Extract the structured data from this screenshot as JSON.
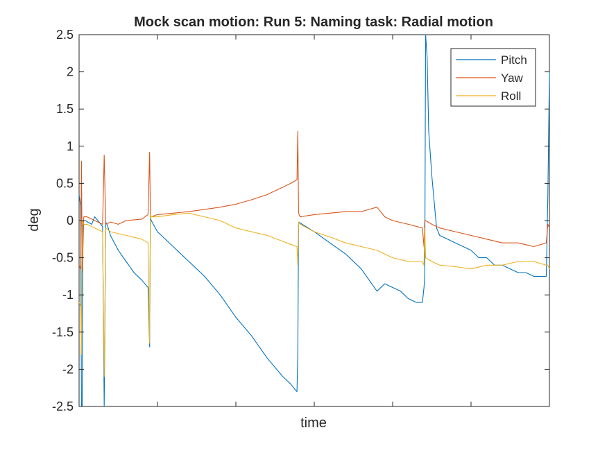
{
  "chart_data": {
    "type": "line",
    "title": "Mock scan motion: Run 5: Naming task: Radial motion",
    "xlabel": "time",
    "ylabel": "deg",
    "xlim": [
      0,
      300
    ],
    "ylim": [
      -2.5,
      2.5
    ],
    "yticks": [
      -2.5,
      -2,
      -1.5,
      -1,
      -0.5,
      0,
      0.5,
      1,
      1.5,
      2,
      2.5
    ],
    "ytick_labels": [
      "-2.5",
      "-2",
      "-1.5",
      "-1",
      "-0.5",
      "0",
      "0.5",
      "1",
      "1.5",
      "2",
      "2.5"
    ],
    "xticks": [
      0,
      50,
      100,
      150,
      200,
      250,
      300
    ],
    "xtick_labels": [
      "",
      "",
      "",
      "",
      "",
      "",
      ""
    ],
    "grid": false,
    "legend": "top-right",
    "series": [
      {
        "name": "Pitch",
        "color": "#0072BD",
        "x": [
          0,
          1,
          1.5,
          2,
          2.5,
          4,
          8,
          10,
          12,
          15,
          16,
          17,
          18,
          20,
          25,
          30,
          35,
          40,
          44,
          45,
          45.5,
          46,
          50,
          60,
          70,
          80,
          90,
          100,
          110,
          120,
          130,
          135,
          138,
          139,
          139.5,
          140,
          150,
          160,
          170,
          180,
          185,
          190,
          195,
          200,
          205,
          210,
          215,
          219,
          220,
          220.5,
          221,
          222,
          223,
          225,
          228,
          230,
          235,
          240,
          245,
          250,
          255,
          260,
          265,
          270,
          275,
          280,
          285,
          290,
          298,
          299,
          300
        ],
        "y": [
          0.35,
          0.2,
          -2.5,
          -2.5,
          0.0,
          0.0,
          -0.05,
          0.05,
          0.0,
          -0.08,
          -2.5,
          -0.02,
          -0.06,
          -0.2,
          -0.4,
          -0.55,
          -0.7,
          -0.8,
          -0.9,
          -1.7,
          0.05,
          0.0,
          -0.15,
          -0.35,
          -0.55,
          -0.75,
          -1.0,
          -1.3,
          -1.55,
          -1.85,
          -2.1,
          -2.2,
          -2.28,
          -2.3,
          -1.8,
          -0.02,
          -0.15,
          -0.3,
          -0.45,
          -0.65,
          -0.8,
          -0.95,
          -0.85,
          -0.9,
          -0.95,
          -1.05,
          -1.1,
          -1.1,
          -0.9,
          -0.75,
          2.5,
          2.2,
          1.2,
          0.6,
          -0.1,
          -0.2,
          -0.25,
          -0.3,
          -0.35,
          -0.4,
          -0.5,
          -0.5,
          -0.6,
          -0.6,
          -0.65,
          -0.7,
          -0.7,
          -0.75,
          -0.75,
          0.3,
          2.0
        ]
      },
      {
        "name": "Yaw",
        "color": "#D95319",
        "x": [
          0,
          1,
          1.5,
          2,
          3,
          5,
          10,
          15,
          16,
          17,
          20,
          25,
          30,
          40,
          44,
          45,
          45.5,
          46,
          50,
          60,
          70,
          80,
          90,
          100,
          110,
          120,
          130,
          135,
          139,
          139.5,
          140,
          141,
          150,
          160,
          170,
          180,
          185,
          190,
          195,
          200,
          210,
          219,
          220,
          220.5,
          221,
          225,
          230,
          240,
          250,
          260,
          270,
          280,
          290,
          298,
          299,
          300
        ],
        "y": [
          -0.6,
          -0.65,
          0.8,
          -0.7,
          0.05,
          0.05,
          0.0,
          -0.05,
          0.88,
          -0.05,
          -0.02,
          -0.05,
          0.0,
          0.02,
          0.08,
          0.92,
          0.05,
          0.05,
          0.08,
          0.1,
          0.12,
          0.15,
          0.18,
          0.22,
          0.28,
          0.35,
          0.45,
          0.5,
          0.55,
          1.2,
          0.1,
          0.05,
          0.08,
          0.1,
          0.12,
          0.12,
          0.15,
          0.18,
          0.05,
          0.0,
          -0.05,
          -0.1,
          -0.35,
          0.0,
          0.0,
          -0.05,
          -0.1,
          -0.15,
          -0.2,
          -0.25,
          -0.3,
          -0.3,
          -0.35,
          -0.3,
          -0.05,
          -0.1
        ]
      },
      {
        "name": "Roll",
        "color": "#EDB120",
        "x": [
          0,
          1,
          1.5,
          2,
          3,
          5,
          10,
          15,
          16,
          17,
          20,
          30,
          40,
          44,
          45,
          45.5,
          46,
          50,
          60,
          70,
          80,
          90,
          100,
          110,
          120,
          130,
          135,
          139,
          139.5,
          140,
          141,
          150,
          160,
          170,
          180,
          190,
          200,
          210,
          219,
          220,
          220.5,
          221,
          225,
          230,
          240,
          250,
          260,
          270,
          280,
          290,
          298,
          299,
          300
        ],
        "y": [
          -1.1,
          -1.15,
          -1.8,
          0.0,
          -0.05,
          -0.05,
          -0.1,
          -0.15,
          -2.1,
          -0.1,
          -0.15,
          -0.2,
          -0.25,
          -0.3,
          -1.65,
          0.08,
          0.05,
          0.05,
          0.08,
          0.1,
          0.05,
          0.0,
          -0.1,
          -0.15,
          -0.2,
          -0.28,
          -0.32,
          -0.35,
          -0.6,
          -0.02,
          -0.05,
          -0.15,
          -0.22,
          -0.3,
          -0.35,
          -0.4,
          -0.5,
          -0.55,
          -0.55,
          -0.6,
          -0.1,
          -0.5,
          -0.55,
          -0.6,
          -0.62,
          -0.65,
          -0.6,
          -0.6,
          -0.55,
          -0.55,
          -0.6,
          -0.6,
          -0.65
        ]
      }
    ]
  }
}
